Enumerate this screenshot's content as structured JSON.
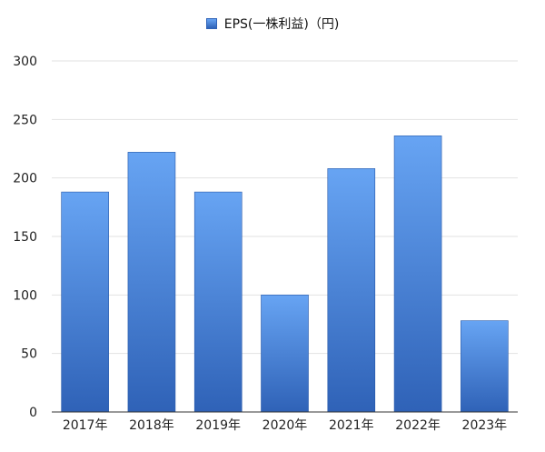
{
  "chart_data": {
    "type": "bar",
    "categories": [
      "2017年",
      "2018年",
      "2019年",
      "2020年",
      "2021年",
      "2022年",
      "2023年"
    ],
    "series": [
      {
        "name": "EPS(一株利益)（円)",
        "values": [
          188,
          222,
          188,
          100,
          208,
          236,
          78
        ]
      }
    ],
    "yticks": [
      0,
      50,
      100,
      150,
      200,
      250,
      300
    ],
    "ylim": [
      0,
      300
    ],
    "grid": true,
    "legend_position": "top-center",
    "colors": {
      "bar_top": "#67a4f3",
      "bar_bottom": "#2f62b7",
      "bar_edge": "#2557a8",
      "grid": "#e2e2e2",
      "axis": "#333333"
    }
  }
}
